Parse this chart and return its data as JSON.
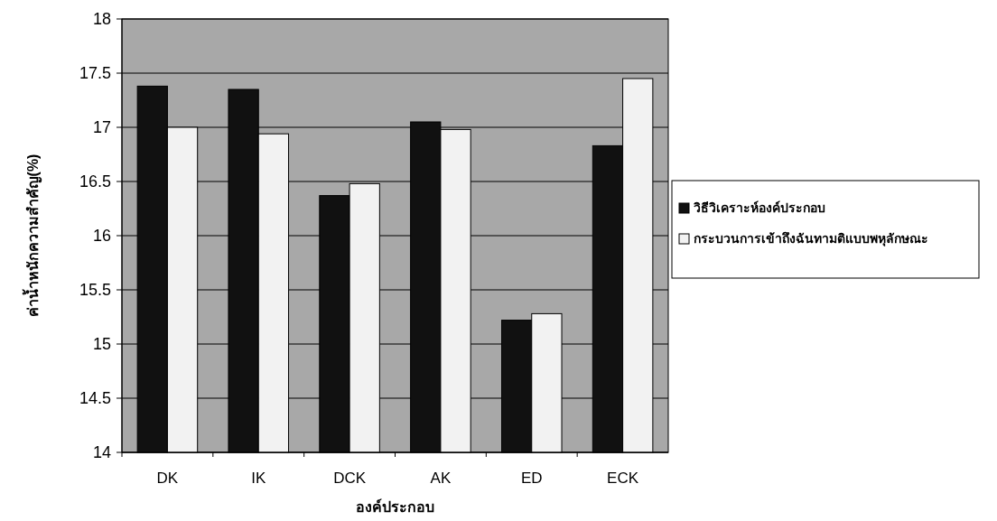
{
  "chart_data": {
    "type": "bar",
    "xlabel": "องค์ประกอบ",
    "ylabel": "ค่าน้ำหนักความสำคัญ(%)",
    "categories": [
      "DK",
      "IK",
      "DCK",
      "AK",
      "ED",
      "ECK"
    ],
    "series": [
      {
        "name": "วิธีวิเคราะห์องค์ประกอบ",
        "color": "#111111",
        "values": [
          17.38,
          17.35,
          16.37,
          17.05,
          15.22,
          16.83
        ]
      },
      {
        "name": "กระบวนการเข้าถึงฉันทามติแบบพหุลักษณะ",
        "color": "#f2f2f2",
        "values": [
          17.0,
          16.94,
          16.48,
          16.98,
          15.28,
          17.45
        ]
      }
    ],
    "ylim": [
      14,
      18
    ],
    "yticks": [
      14,
      14.5,
      15,
      15.5,
      16,
      16.5,
      17,
      17.5,
      18
    ],
    "grid": "y",
    "legend": "right"
  }
}
